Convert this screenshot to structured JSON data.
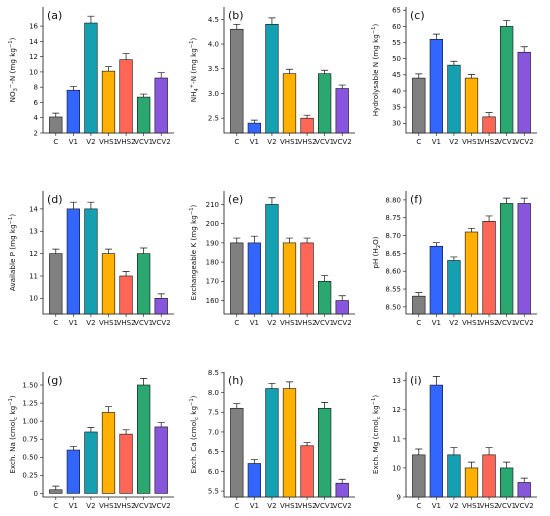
{
  "colors": [
    "#808080",
    "#3366ff",
    "#14a0b0",
    "#ffb000",
    "#ff6655",
    "#2aa870",
    "#8855dd"
  ],
  "chart_data": [
    {
      "type": "bar",
      "panel": "(a)",
      "ylabel": "NO3−-N (mg kg−1)",
      "categories": [
        "C",
        "V1",
        "V2",
        "VHS1",
        "VHS2",
        "VCV1",
        "VCV2"
      ],
      "values": [
        4.1,
        7.6,
        16.4,
        10.1,
        11.6,
        6.7,
        9.2
      ],
      "errors": [
        0.5,
        0.5,
        0.9,
        0.6,
        0.8,
        0.4,
        0.7
      ],
      "ylim": [
        2,
        18.5
      ],
      "yticks": [
        2,
        4,
        6,
        8,
        10,
        12,
        14,
        16
      ],
      "ytick_labels": [
        "2",
        "4",
        "6",
        "8",
        "10",
        "12",
        "14",
        "16"
      ]
    },
    {
      "type": "bar",
      "panel": "(b)",
      "ylabel": "NH4+-N (mg kg−1)",
      "categories": [
        "C",
        "V1",
        "V2",
        "VHS1",
        "VHS2",
        "VCV1",
        "VCV2"
      ],
      "values": [
        4.3,
        2.4,
        4.4,
        3.4,
        2.5,
        3.4,
        3.1
      ],
      "errors": [
        0.1,
        0.06,
        0.13,
        0.09,
        0.06,
        0.07,
        0.07
      ],
      "ylim": [
        2.2,
        4.75
      ],
      "yticks": [
        2.5,
        3.0,
        3.5,
        4.0,
        4.5
      ],
      "ytick_labels": [
        "2.5",
        "3.0",
        "3.5",
        "4.0",
        "4.5"
      ]
    },
    {
      "type": "bar",
      "panel": "(c)",
      "ylabel": "Hydrolysable N (mg kg−1)",
      "categories": [
        "C",
        "V1",
        "V2",
        "VHS1",
        "VHS2",
        "VCV1",
        "VCV2"
      ],
      "values": [
        44,
        56,
        48,
        44,
        32,
        60,
        52
      ],
      "errors": [
        1.3,
        1.6,
        1.2,
        1.1,
        1.3,
        1.8,
        1.7
      ],
      "ylim": [
        27,
        66
      ],
      "yticks": [
        30,
        35,
        40,
        45,
        50,
        55,
        60,
        65
      ],
      "ytick_labels": [
        "30",
        "35",
        "40",
        "45",
        "50",
        "55",
        "60",
        "65"
      ]
    },
    {
      "type": "bar",
      "panel": "(d)",
      "ylabel": "Available P (mg kg−1)",
      "categories": [
        "C",
        "V1",
        "V2",
        "VHS1",
        "VHS2",
        "VCV1",
        "VCV2"
      ],
      "values": [
        12.0,
        14.0,
        14.0,
        12.0,
        11.0,
        12.0,
        10.0
      ],
      "errors": [
        0.2,
        0.3,
        0.3,
        0.2,
        0.2,
        0.25,
        0.2
      ],
      "ylim": [
        9.3,
        14.8
      ],
      "yticks": [
        10,
        11,
        12,
        13,
        14
      ],
      "ytick_labels": [
        "10",
        "11",
        "12",
        "13",
        "14"
      ]
    },
    {
      "type": "bar",
      "panel": "(e)",
      "ylabel": "Exchangeable K (mg kg−1)",
      "categories": [
        "C",
        "V1",
        "V2",
        "VHS1",
        "VHS2",
        "VCV1",
        "VCV2"
      ],
      "values": [
        190,
        190,
        210,
        190,
        190,
        170,
        160
      ],
      "errors": [
        2.5,
        3.5,
        3.5,
        2.5,
        2.5,
        3,
        2.5
      ],
      "ylim": [
        153,
        217
      ],
      "yticks": [
        160,
        170,
        180,
        190,
        200,
        210
      ],
      "ytick_labels": [
        "160",
        "170",
        "180",
        "190",
        "200",
        "210"
      ]
    },
    {
      "type": "bar",
      "panel": "(f)",
      "ylabel": "pH (H2O)",
      "categories": [
        "C",
        "V1",
        "V2",
        "VHS1",
        "VHS2",
        "VCV1",
        "VCV2"
      ],
      "values": [
        8.53,
        8.67,
        8.63,
        8.71,
        8.74,
        8.79,
        8.79
      ],
      "errors": [
        0.01,
        0.01,
        0.01,
        0.01,
        0.015,
        0.015,
        0.015
      ],
      "ylim": [
        8.48,
        8.825
      ],
      "yticks": [
        8.5,
        8.55,
        8.6,
        8.65,
        8.7,
        8.75,
        8.8
      ],
      "ytick_labels": [
        "8.50",
        "8.55",
        "8.60",
        "8.65",
        "8.70",
        "8.75",
        "8.80"
      ]
    },
    {
      "type": "bar",
      "panel": "(g)",
      "ylabel": "Exch. Na (cmolc kg−1)",
      "categories": [
        "C",
        "V1",
        "V2",
        "VHS1",
        "VHS2",
        "VCV1",
        "VCV2"
      ],
      "values": [
        0.05,
        0.6,
        0.85,
        1.12,
        0.82,
        1.5,
        0.92
      ],
      "errors": [
        0.05,
        0.05,
        0.06,
        0.08,
        0.06,
        0.09,
        0.06
      ],
      "ylim": [
        -0.05,
        1.68
      ],
      "yticks": [
        0,
        0.25,
        0.5,
        0.75,
        1.0,
        1.25,
        1.5
      ],
      "ytick_labels": [
        "0",
        "0.25",
        "0.50",
        "0.75",
        "1.00",
        "1.25",
        "1.50"
      ]
    },
    {
      "type": "bar",
      "panel": "(h)",
      "ylabel": "Exch. Ca (cmolc kg−1)",
      "categories": [
        "C",
        "V1",
        "V2",
        "VHS1",
        "VHS2",
        "VCV1",
        "VCV2"
      ],
      "values": [
        7.6,
        6.2,
        8.1,
        8.1,
        6.65,
        7.6,
        5.7
      ],
      "errors": [
        0.12,
        0.1,
        0.13,
        0.17,
        0.08,
        0.15,
        0.1
      ],
      "ylim": [
        5.35,
        8.52
      ],
      "yticks": [
        5.5,
        6.0,
        6.5,
        7.0,
        7.5,
        8.0,
        8.5
      ],
      "ytick_labels": [
        "5.5",
        "6.0",
        "6.5",
        "7.0",
        "7.5",
        "8.0",
        "8.5"
      ]
    },
    {
      "type": "bar",
      "panel": "(i)",
      "ylabel": "Exch. Mg (cmolc kg−1)",
      "categories": [
        "C",
        "V1",
        "V2",
        "VHS1",
        "VHS2",
        "VCV1",
        "VCV2"
      ],
      "values": [
        10.45,
        12.85,
        10.45,
        10.0,
        10.45,
        10.0,
        9.5
      ],
      "errors": [
        0.2,
        0.3,
        0.25,
        0.2,
        0.25,
        0.2,
        0.15
      ],
      "ylim": [
        9.0,
        13.3
      ],
      "yticks": [
        9,
        10,
        11,
        12,
        13
      ],
      "ytick_labels": [
        "9",
        "10",
        "11",
        "12",
        "13"
      ]
    }
  ]
}
